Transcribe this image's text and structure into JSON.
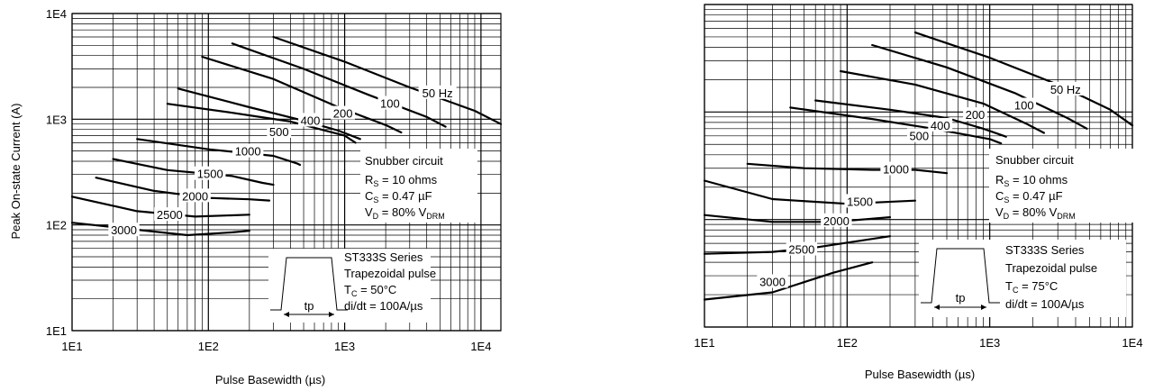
{
  "chart_data": [
    {
      "type": "line",
      "xlabel": "Pulse Basewidth (µs)",
      "ylabel": "Peak On-state Current (A)",
      "xscale": "log",
      "yscale": "log",
      "xlim": [
        10,
        14000
      ],
      "ylim": [
        10,
        10000
      ],
      "grid": true,
      "x_ticks": [
        "1E1",
        "1E2",
        "1E3",
        "1E4"
      ],
      "y_ticks": [
        "1E1",
        "1E2",
        "1E3",
        "1E4"
      ],
      "snubber": {
        "title": "Snubber circuit",
        "rs": [
          "R",
          "S",
          " = 10 ohms"
        ],
        "cs": [
          "C",
          "S",
          " = 0.47 µF"
        ],
        "vd": [
          "V",
          "D",
          " = 80% V",
          "DRM"
        ]
      },
      "series_box": {
        "line1": "ST333S Series",
        "line2": "Trapezoidal pulse",
        "tc": [
          "T",
          "C",
          " = 50°C"
        ],
        "didt": "di/dt = 100A/µs",
        "tp": "tp"
      },
      "series": [
        {
          "name": "50 Hz",
          "x": [
            300,
            1000,
            3000,
            9000,
            14000
          ],
          "y": [
            6000,
            3500,
            2000,
            1200,
            900
          ],
          "label_x": 4800,
          "label_y": 1750
        },
        {
          "name": "100",
          "x": [
            150,
            500,
            1500,
            4000,
            5500
          ],
          "y": [
            5200,
            3000,
            1700,
            1050,
            850
          ],
          "label_x": 2150,
          "label_y": 1390
        },
        {
          "name": "200",
          "x": [
            90,
            300,
            900,
            2000,
            2600
          ],
          "y": [
            3900,
            2400,
            1300,
            880,
            750
          ],
          "label_x": 970,
          "label_y": 1120
        },
        {
          "name": "400",
          "x": [
            60,
            200,
            500,
            900,
            1300
          ],
          "y": [
            1950,
            1300,
            970,
            780,
            650
          ],
          "label_x": 560,
          "label_y": 960
        },
        {
          "name": "500",
          "x": [
            50,
            150,
            400,
            1000,
            1200
          ],
          "y": [
            1400,
            1150,
            950,
            700,
            600
          ],
          "label_x": 330,
          "label_y": 750
        },
        {
          "name": "1000",
          "x": [
            30,
            100,
            300,
            450,
            470
          ],
          "y": [
            650,
            520,
            450,
            380,
            370
          ],
          "label_x": 195,
          "label_y": 490
        },
        {
          "name": "1500",
          "x": [
            20,
            50,
            150,
            250,
            300
          ],
          "y": [
            420,
            330,
            290,
            250,
            240
          ],
          "label_x": 103,
          "label_y": 300
        },
        {
          "name": "2000",
          "x": [
            15,
            40,
            100,
            200,
            280
          ],
          "y": [
            280,
            210,
            180,
            175,
            170
          ],
          "label_x": 80,
          "label_y": 185
        },
        {
          "name": "2500",
          "x": [
            10,
            30,
            80,
            200
          ],
          "y": [
            185,
            135,
            120,
            125
          ],
          "label_x": 52,
          "label_y": 123
        },
        {
          "name": "3000",
          "x": [
            10,
            30,
            70,
            150,
            200
          ],
          "y": [
            105,
            90,
            80,
            85,
            88
          ],
          "label_x": 24,
          "label_y": 88
        }
      ]
    },
    {
      "type": "line",
      "xlabel": "Pulse Basewidth (µs)",
      "ylabel": "",
      "xscale": "log",
      "yscale": "log",
      "xlim": [
        10,
        10000
      ],
      "ylim": [
        10,
        10000
      ],
      "grid": true,
      "x_ticks": [
        "1E1",
        "1E2",
        "1E3",
        "1E4"
      ],
      "y_ticks": [],
      "snubber": {
        "title": "Snubber circuit",
        "rs": [
          "R",
          "S",
          " = 10 ohms"
        ],
        "cs": [
          "C",
          "S",
          " = 0.47 µF"
        ],
        "vd": [
          "V",
          "D",
          " = 80% V",
          "DRM"
        ]
      },
      "series_box": {
        "line1": "ST333S Series",
        "line2": "Trapezoidal pulse",
        "tc": [
          "T",
          "C",
          " = 75°C"
        ],
        "didt": "di/dt = 100A/µs",
        "tp": "tp"
      },
      "series": [
        {
          "name": "50 Hz",
          "x": [
            300,
            1000,
            3000,
            7000,
            10000
          ],
          "y": [
            5500,
            3200,
            1800,
            1050,
            750
          ],
          "label_x": 3400,
          "label_y": 1600
        },
        {
          "name": "100",
          "x": [
            150,
            500,
            1500,
            3500,
            4800
          ],
          "y": [
            4200,
            2600,
            1500,
            880,
            700
          ],
          "label_x": 1740,
          "label_y": 1140
        },
        {
          "name": "200",
          "x": [
            90,
            300,
            900,
            1800,
            2400
          ],
          "y": [
            2400,
            1800,
            1200,
            780,
            640
          ],
          "label_x": 790,
          "label_y": 930
        },
        {
          "name": "400",
          "x": [
            60,
            200,
            500,
            900,
            1300
          ],
          "y": [
            1280,
            1050,
            880,
            700,
            590
          ],
          "label_x": 450,
          "label_y": 740
        },
        {
          "name": "500",
          "x": [
            40,
            150,
            400,
            1000,
            1200
          ],
          "y": [
            1100,
            860,
            700,
            560,
            510
          ],
          "label_x": 320,
          "label_y": 590
        },
        {
          "name": "1000",
          "x": [
            20,
            50,
            150,
            300,
            500
          ],
          "y": [
            330,
            300,
            290,
            290,
            270
          ],
          "label_x": 220,
          "label_y": 290
        },
        {
          "name": "1500",
          "x": [
            10,
            30,
            100,
            300
          ],
          "y": [
            230,
            155,
            140,
            150
          ],
          "label_x": 123,
          "label_y": 145
        },
        {
          "name": "2000",
          "x": [
            10,
            30,
            80,
            200
          ],
          "y": [
            110,
            95,
            95,
            105
          ],
          "label_x": 84,
          "label_y": 96
        },
        {
          "name": "2500",
          "x": [
            10,
            30,
            60,
            200
          ],
          "y": [
            48,
            50,
            55,
            70
          ],
          "label_x": 48,
          "label_y": 52
        },
        {
          "name": "3000",
          "x": [
            10,
            30,
            80,
            150
          ],
          "y": [
            18,
            21,
            32,
            40
          ],
          "label_x": 30,
          "label_y": 26
        }
      ]
    }
  ]
}
